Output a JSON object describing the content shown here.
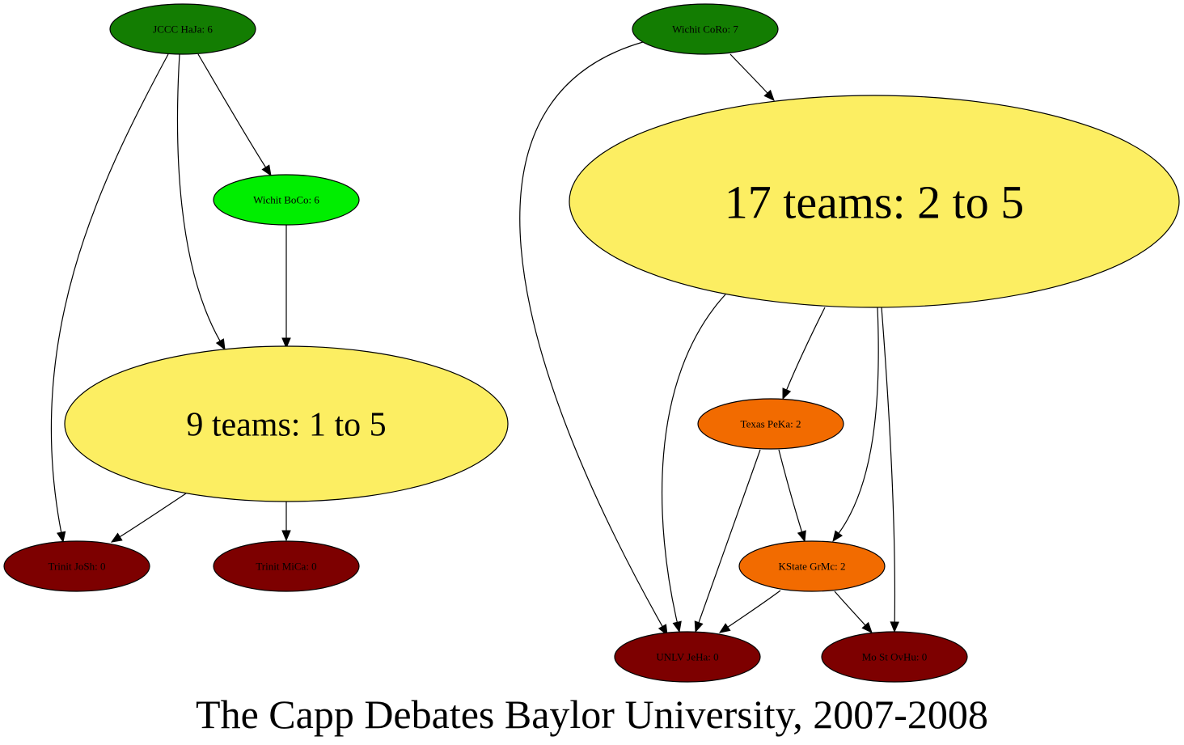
{
  "title": "The Capp Debates Baylor University, 2007-2008",
  "colors": {
    "dark_green": "#137D02",
    "bright_green": "#00EE00",
    "yellow": "#FCEE62",
    "orange": "#F26B00",
    "dark_red": "#7D0000"
  },
  "nodes": [
    {
      "id": "jccc_haja",
      "label": "JCCC HaJa: 6",
      "color": "dark_green"
    },
    {
      "id": "wichit_boco",
      "label": "Wichit BoCo: 6",
      "color": "bright_green"
    },
    {
      "id": "group_9",
      "label": "9 teams: 1 to 5",
      "color": "yellow"
    },
    {
      "id": "trinit_josh",
      "label": "Trinit JoSh: 0",
      "color": "dark_red"
    },
    {
      "id": "trinit_mica",
      "label": "Trinit MiCa: 0",
      "color": "dark_red"
    },
    {
      "id": "wichit_coro",
      "label": "Wichit CoRo: 7",
      "color": "dark_green"
    },
    {
      "id": "group_17",
      "label": "17 teams: 2 to 5",
      "color": "yellow"
    },
    {
      "id": "texas_peka",
      "label": "Texas PeKa: 2",
      "color": "orange"
    },
    {
      "id": "kstate_grmc",
      "label": "KState GrMc: 2",
      "color": "orange"
    },
    {
      "id": "unlv_jeha",
      "label": "UNLV JeHa: 0",
      "color": "dark_red"
    },
    {
      "id": "most_ovhu",
      "label": "Mo St OvHu: 0",
      "color": "dark_red"
    }
  ],
  "edges": [
    {
      "from": "jccc_haja",
      "to": "wichit_boco"
    },
    {
      "from": "jccc_haja",
      "to": "group_9"
    },
    {
      "from": "jccc_haja",
      "to": "trinit_josh"
    },
    {
      "from": "wichit_boco",
      "to": "group_9"
    },
    {
      "from": "group_9",
      "to": "trinit_josh"
    },
    {
      "from": "group_9",
      "to": "trinit_mica"
    },
    {
      "from": "wichit_coro",
      "to": "group_17"
    },
    {
      "from": "wichit_coro",
      "to": "unlv_jeha"
    },
    {
      "from": "group_17",
      "to": "texas_peka"
    },
    {
      "from": "group_17",
      "to": "unlv_jeha"
    },
    {
      "from": "group_17",
      "to": "kstate_grmc"
    },
    {
      "from": "group_17",
      "to": "most_ovhu"
    },
    {
      "from": "texas_peka",
      "to": "kstate_grmc"
    },
    {
      "from": "texas_peka",
      "to": "unlv_jeha"
    },
    {
      "from": "kstate_grmc",
      "to": "unlv_jeha"
    },
    {
      "from": "kstate_grmc",
      "to": "most_ovhu"
    }
  ]
}
